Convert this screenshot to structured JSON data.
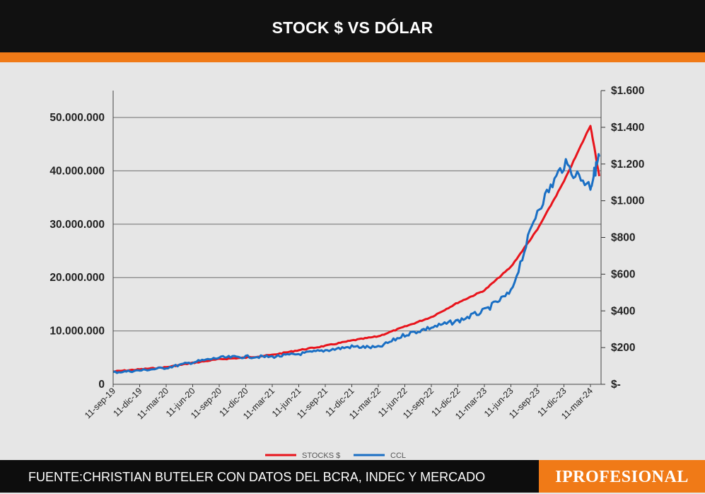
{
  "title": "STOCK $ VS DÓLAR",
  "footer": {
    "source": "FUENTE:CHRISTIAN BUTELER CON DATOS DEL BCRA, INDEC Y MERCADO",
    "brand": "IPROFESIONAL"
  },
  "colors": {
    "accent": "#f07a17",
    "header_bg": "#111111",
    "plot_bg": "#e6e6e6",
    "stocks": "#e8141c",
    "ccl": "#1a6fc4"
  },
  "chart_data": {
    "type": "line",
    "title": "STOCK $ VS DÓLAR",
    "x_tick_labels": [
      "11-sep-19",
      "11-dic-19",
      "11-mar-20",
      "11-jun-20",
      "11-sep-20",
      "11-dic-20",
      "11-mar-21",
      "11-jun-21",
      "11-sep-21",
      "11-dic-21",
      "11-mar-22",
      "11-jun-22",
      "11-sep-22",
      "11-dic-22",
      "11-mar-23",
      "11-jun-23",
      "11-sep-23",
      "11-dic-23",
      "11-mar-24"
    ],
    "y_left": {
      "ylim": [
        0,
        50000000
      ],
      "ticks": [
        0,
        10000000,
        20000000,
        30000000,
        40000000,
        50000000
      ],
      "tick_labels": [
        "0",
        "10.000.000",
        "20.000.000",
        "30.000.000",
        "40.000.000",
        "50.000.000"
      ]
    },
    "y_right": {
      "ylim": [
        0,
        1600
      ],
      "ticks": [
        0,
        200,
        400,
        600,
        800,
        1000,
        1200,
        1400,
        1600
      ],
      "tick_labels": [
        "$-",
        "$200",
        "$400",
        "$600",
        "$800",
        "$1.000",
        "$1.200",
        "$1.400",
        "$1.600"
      ]
    },
    "legend": {
      "position": "bottom",
      "entries": [
        "STOCKS $",
        "CCL"
      ]
    },
    "grid": true,
    "series": [
      {
        "name": "STOCKS $",
        "axis": "left",
        "color": "#e8141c",
        "points": [
          [
            "11-sep-19",
            2400000
          ],
          [
            "11-dic-19",
            2800000
          ],
          [
            "11-mar-20",
            3200000
          ],
          [
            "11-jun-20",
            4000000
          ],
          [
            "11-sep-20",
            4700000
          ],
          [
            "11-dic-20",
            5000000
          ],
          [
            "11-mar-21",
            5500000
          ],
          [
            "11-jun-21",
            6400000
          ],
          [
            "11-sep-21",
            7200000
          ],
          [
            "11-dic-21",
            8200000
          ],
          [
            "11-mar-22",
            9000000
          ],
          [
            "11-jun-22",
            10800000
          ],
          [
            "11-sep-22",
            12600000
          ],
          [
            "11-dic-22",
            15300000
          ],
          [
            "11-mar-23",
            17600000
          ],
          [
            "11-jun-23",
            22000000
          ],
          [
            "11-sep-23",
            29000000
          ],
          [
            "11-dic-23",
            38000000
          ],
          [
            "11-mar-24",
            48500000
          ],
          [
            "11-abr-24",
            39000000
          ]
        ]
      },
      {
        "name": "CCL",
        "axis": "right",
        "color": "#1a6fc4",
        "points": [
          [
            "11-sep-19",
            65
          ],
          [
            "11-dic-19",
            75
          ],
          [
            "11-mar-20",
            90
          ],
          [
            "11-jun-20",
            120
          ],
          [
            "11-sep-20",
            145
          ],
          [
            "11-dic-20",
            150
          ],
          [
            "11-mar-21",
            150
          ],
          [
            "11-jun-21",
            165
          ],
          [
            "11-sep-21",
            185
          ],
          [
            "11-dic-21",
            205
          ],
          [
            "11-mar-22",
            200
          ],
          [
            "11-jun-22",
            270
          ],
          [
            "11-sep-22",
            310
          ],
          [
            "11-dic-22",
            345
          ],
          [
            "11-mar-23",
            400
          ],
          [
            "11-jun-23",
            500
          ],
          [
            "11-sep-23",
            950
          ],
          [
            "11-dic-23",
            1200
          ],
          [
            "11-mar-24",
            1080
          ],
          [
            "11-abr-24",
            1240
          ]
        ]
      }
    ]
  }
}
